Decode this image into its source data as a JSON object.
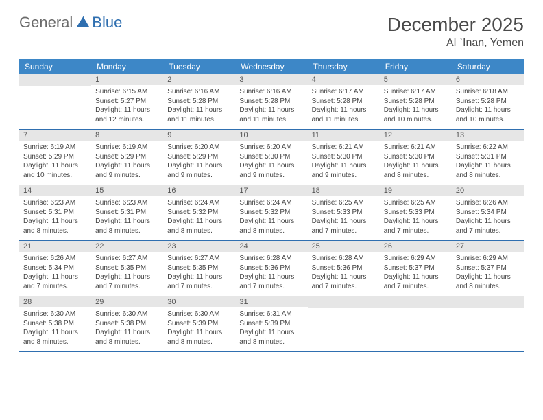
{
  "logo": {
    "part1": "General",
    "part2": "Blue"
  },
  "title": "December 2025",
  "location": "Al `Inan, Yemen",
  "colors": {
    "header_bg": "#3d87c7",
    "header_text": "#ffffff",
    "daynum_bg": "#e6e6e6",
    "rule": "#2f6fb0",
    "text": "#444444",
    "title_color": "#4a4a4a",
    "logo_gray": "#6b6b6b",
    "logo_blue": "#2f6fb0"
  },
  "days_of_week": [
    "Sunday",
    "Monday",
    "Tuesday",
    "Wednesday",
    "Thursday",
    "Friday",
    "Saturday"
  ],
  "start_offset": 1,
  "days": [
    {
      "n": 1,
      "sunrise": "6:15 AM",
      "sunset": "5:27 PM",
      "daylight": "11 hours and 12 minutes."
    },
    {
      "n": 2,
      "sunrise": "6:16 AM",
      "sunset": "5:28 PM",
      "daylight": "11 hours and 11 minutes."
    },
    {
      "n": 3,
      "sunrise": "6:16 AM",
      "sunset": "5:28 PM",
      "daylight": "11 hours and 11 minutes."
    },
    {
      "n": 4,
      "sunrise": "6:17 AM",
      "sunset": "5:28 PM",
      "daylight": "11 hours and 11 minutes."
    },
    {
      "n": 5,
      "sunrise": "6:17 AM",
      "sunset": "5:28 PM",
      "daylight": "11 hours and 10 minutes."
    },
    {
      "n": 6,
      "sunrise": "6:18 AM",
      "sunset": "5:28 PM",
      "daylight": "11 hours and 10 minutes."
    },
    {
      "n": 7,
      "sunrise": "6:19 AM",
      "sunset": "5:29 PM",
      "daylight": "11 hours and 10 minutes."
    },
    {
      "n": 8,
      "sunrise": "6:19 AM",
      "sunset": "5:29 PM",
      "daylight": "11 hours and 9 minutes."
    },
    {
      "n": 9,
      "sunrise": "6:20 AM",
      "sunset": "5:29 PM",
      "daylight": "11 hours and 9 minutes."
    },
    {
      "n": 10,
      "sunrise": "6:20 AM",
      "sunset": "5:30 PM",
      "daylight": "11 hours and 9 minutes."
    },
    {
      "n": 11,
      "sunrise": "6:21 AM",
      "sunset": "5:30 PM",
      "daylight": "11 hours and 9 minutes."
    },
    {
      "n": 12,
      "sunrise": "6:21 AM",
      "sunset": "5:30 PM",
      "daylight": "11 hours and 8 minutes."
    },
    {
      "n": 13,
      "sunrise": "6:22 AM",
      "sunset": "5:31 PM",
      "daylight": "11 hours and 8 minutes."
    },
    {
      "n": 14,
      "sunrise": "6:23 AM",
      "sunset": "5:31 PM",
      "daylight": "11 hours and 8 minutes."
    },
    {
      "n": 15,
      "sunrise": "6:23 AM",
      "sunset": "5:31 PM",
      "daylight": "11 hours and 8 minutes."
    },
    {
      "n": 16,
      "sunrise": "6:24 AM",
      "sunset": "5:32 PM",
      "daylight": "11 hours and 8 minutes."
    },
    {
      "n": 17,
      "sunrise": "6:24 AM",
      "sunset": "5:32 PM",
      "daylight": "11 hours and 8 minutes."
    },
    {
      "n": 18,
      "sunrise": "6:25 AM",
      "sunset": "5:33 PM",
      "daylight": "11 hours and 7 minutes."
    },
    {
      "n": 19,
      "sunrise": "6:25 AM",
      "sunset": "5:33 PM",
      "daylight": "11 hours and 7 minutes."
    },
    {
      "n": 20,
      "sunrise": "6:26 AM",
      "sunset": "5:34 PM",
      "daylight": "11 hours and 7 minutes."
    },
    {
      "n": 21,
      "sunrise": "6:26 AM",
      "sunset": "5:34 PM",
      "daylight": "11 hours and 7 minutes."
    },
    {
      "n": 22,
      "sunrise": "6:27 AM",
      "sunset": "5:35 PM",
      "daylight": "11 hours and 7 minutes."
    },
    {
      "n": 23,
      "sunrise": "6:27 AM",
      "sunset": "5:35 PM",
      "daylight": "11 hours and 7 minutes."
    },
    {
      "n": 24,
      "sunrise": "6:28 AM",
      "sunset": "5:36 PM",
      "daylight": "11 hours and 7 minutes."
    },
    {
      "n": 25,
      "sunrise": "6:28 AM",
      "sunset": "5:36 PM",
      "daylight": "11 hours and 7 minutes."
    },
    {
      "n": 26,
      "sunrise": "6:29 AM",
      "sunset": "5:37 PM",
      "daylight": "11 hours and 7 minutes."
    },
    {
      "n": 27,
      "sunrise": "6:29 AM",
      "sunset": "5:37 PM",
      "daylight": "11 hours and 8 minutes."
    },
    {
      "n": 28,
      "sunrise": "6:30 AM",
      "sunset": "5:38 PM",
      "daylight": "11 hours and 8 minutes."
    },
    {
      "n": 29,
      "sunrise": "6:30 AM",
      "sunset": "5:38 PM",
      "daylight": "11 hours and 8 minutes."
    },
    {
      "n": 30,
      "sunrise": "6:30 AM",
      "sunset": "5:39 PM",
      "daylight": "11 hours and 8 minutes."
    },
    {
      "n": 31,
      "sunrise": "6:31 AM",
      "sunset": "5:39 PM",
      "daylight": "11 hours and 8 minutes."
    }
  ],
  "labels": {
    "sunrise": "Sunrise:",
    "sunset": "Sunset:",
    "daylight": "Daylight:"
  }
}
